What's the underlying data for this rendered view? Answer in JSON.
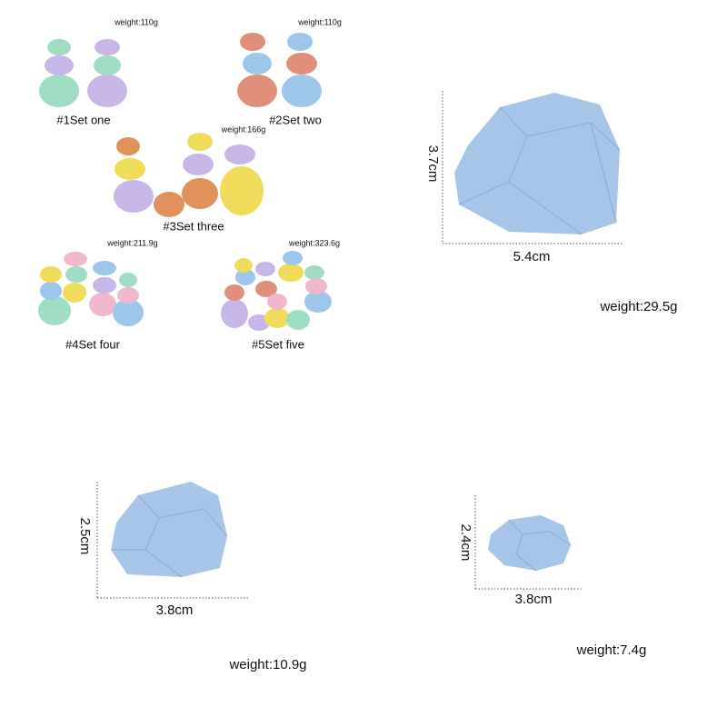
{
  "sets": [
    {
      "label": "#1Set one",
      "weight": "weight:110g"
    },
    {
      "label": "#2Set two",
      "weight": "weight:110g"
    },
    {
      "label": "#3Set three",
      "weight": "weight:166g"
    },
    {
      "label": "#4Set four",
      "weight": "weight:211.9g"
    },
    {
      "label": "#5Set five",
      "weight": "weight:323.6g"
    }
  ],
  "large": {
    "height": "3.7cm",
    "width": "5.4cm",
    "weight": "weight:29.5g"
  },
  "medium": {
    "height": "2.5cm",
    "width": "3.8cm",
    "weight": "weight:10.9g"
  },
  "small": {
    "height": "2.4cm",
    "width": "3.8cm",
    "weight": "weight:7.4g"
  }
}
